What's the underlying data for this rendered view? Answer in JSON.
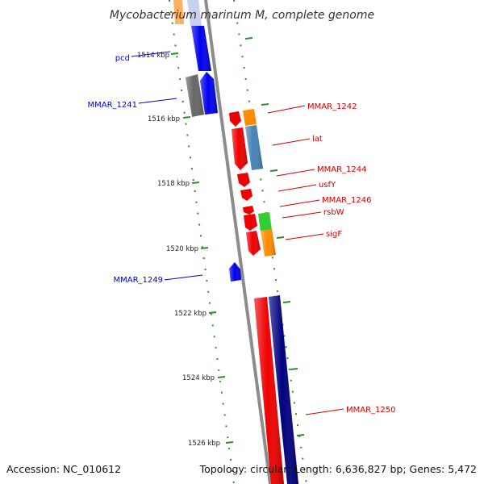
{
  "title": "Mycobacterium marinum M, complete genome",
  "footer": {
    "accession": "Accession: NC_010612",
    "topology": "Topology: circular; Length: 6,636,827 bp; Genes: 5,472"
  },
  "ticks": [
    {
      "label": "1514 kbp"
    },
    {
      "label": "1516 kbp"
    },
    {
      "label": "1518 kbp"
    },
    {
      "label": "1520 kbp"
    },
    {
      "label": "1522 kbp"
    },
    {
      "label": "1524 kbp"
    },
    {
      "label": "1526 kbp"
    }
  ],
  "gene_labels": [
    {
      "name": "pcd",
      "color": "#0000cc"
    },
    {
      "name": "MMAR_1241",
      "color": "#0000cc"
    },
    {
      "name": "MMAR_1242",
      "color": "#cc0000"
    },
    {
      "name": "lat",
      "color": "#cc0000"
    },
    {
      "name": "MMAR_1244",
      "color": "#cc0000"
    },
    {
      "name": "usfY",
      "color": "#cc0000"
    },
    {
      "name": "MMAR_1246",
      "color": "#cc0000"
    },
    {
      "name": "rsbW",
      "color": "#cc0000"
    },
    {
      "name": "sigF",
      "color": "#cc0000"
    },
    {
      "name": "MMAR_1249",
      "color": "#0000cc"
    },
    {
      "name": "MMAR_1250",
      "color": "#cc0000"
    }
  ],
  "colors": {
    "backbone": "#888888",
    "ticks": "#2e8b2e",
    "forward": "#ee0000",
    "reverse": "#0000ee",
    "cog_orange": "#ff8c00",
    "cog_steelblue": "#4682b4",
    "cog_green": "#33cc33",
    "cog_navy": "#000080",
    "cog_gray": "#666666"
  }
}
